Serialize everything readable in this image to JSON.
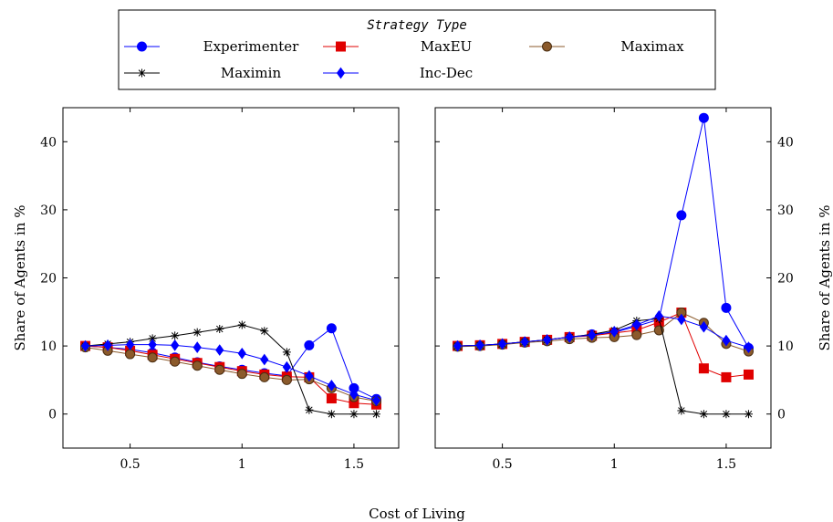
{
  "legend": {
    "title": "Strategy Type",
    "placement": "top-center",
    "columns": 3
  },
  "x_axis_label": "Cost of Living",
  "chart_data": [
    {
      "type": "line",
      "panel": "left",
      "xlabel": "Cost of Living",
      "ylabel": "Share of Agents in %",
      "xlim": [
        0.2,
        1.7
      ],
      "ylim": [
        -5,
        45
      ],
      "x_ticks": [
        0.5,
        1,
        1.5
      ],
      "x_tick_labels": [
        "0.5",
        "1",
        "1.5"
      ],
      "y_ticks": [
        0,
        10,
        20,
        30,
        40
      ],
      "y_tick_labels": [
        "0",
        "10",
        "20",
        "30",
        "40"
      ],
      "grid": false,
      "x": [
        0.3,
        0.4,
        0.5,
        0.6,
        0.7,
        0.8,
        0.9,
        1.0,
        1.1,
        1.2,
        1.3,
        1.4,
        1.5,
        1.6
      ],
      "series": [
        {
          "name": "Experimenter",
          "color": "#0000ff",
          "marker": "circle",
          "values": [
            10.0,
            9.8,
            9.5,
            9.0,
            8.3,
            7.6,
            7.0,
            6.5,
            6.0,
            5.6,
            10.1,
            12.6,
            3.8,
            2.2
          ]
        },
        {
          "name": "MaxEU",
          "color": "#e00000",
          "marker": "square",
          "values": [
            10.0,
            9.8,
            9.3,
            8.7,
            8.1,
            7.5,
            6.9,
            6.3,
            5.8,
            5.5,
            5.4,
            2.3,
            1.6,
            1.4
          ]
        },
        {
          "name": "Maximax",
          "color": "#8b5a2b",
          "marker": "circle",
          "values": [
            9.8,
            9.3,
            8.8,
            8.3,
            7.7,
            7.1,
            6.5,
            5.9,
            5.4,
            5.0,
            5.1,
            3.8,
            2.5,
            1.9
          ]
        },
        {
          "name": "Maximin",
          "color": "#000000",
          "marker": "star",
          "values": [
            10.0,
            10.3,
            10.6,
            11.1,
            11.5,
            12.0,
            12.5,
            13.1,
            12.2,
            9.1,
            0.6,
            0.0,
            0.0,
            0.0
          ]
        },
        {
          "name": "Inc-Dec",
          "color": "#0000ff",
          "marker": "diamond",
          "values": [
            10.0,
            10.1,
            10.2,
            10.2,
            10.1,
            9.8,
            9.4,
            8.9,
            8.0,
            6.9,
            5.6,
            4.2,
            2.9,
            2.0
          ]
        }
      ]
    },
    {
      "type": "line",
      "panel": "right",
      "xlabel": "Cost of Living",
      "ylabel": "Share of Agents in %",
      "xlim": [
        0.2,
        1.7
      ],
      "ylim": [
        -5,
        45
      ],
      "x_ticks": [
        0.5,
        1,
        1.5
      ],
      "x_tick_labels": [
        "0.5",
        "1",
        "1.5"
      ],
      "y_ticks": [
        0,
        10,
        20,
        30,
        40
      ],
      "y_tick_labels": [
        "0",
        "10",
        "20",
        "30",
        "40"
      ],
      "grid": false,
      "x": [
        0.3,
        0.4,
        0.5,
        0.6,
        0.7,
        0.8,
        0.9,
        1.0,
        1.1,
        1.2,
        1.3,
        1.4,
        1.5,
        1.6
      ],
      "series": [
        {
          "name": "Experimenter",
          "color": "#0000ff",
          "marker": "circle",
          "values": [
            10.0,
            10.1,
            10.3,
            10.6,
            10.9,
            11.3,
            11.7,
            12.0,
            12.9,
            13.9,
            29.2,
            43.5,
            15.6,
            9.7
          ]
        },
        {
          "name": "MaxEU",
          "color": "#e00000",
          "marker": "square",
          "values": [
            10.0,
            10.1,
            10.3,
            10.6,
            10.9,
            11.3,
            11.5,
            11.9,
            12.3,
            13.5,
            14.9,
            6.7,
            5.4,
            5.8
          ]
        },
        {
          "name": "Maximax",
          "color": "#8b5a2b",
          "marker": "circle",
          "values": [
            9.9,
            10.0,
            10.2,
            10.5,
            10.7,
            11.0,
            11.2,
            11.3,
            11.6,
            12.3,
            14.9,
            13.4,
            10.3,
            9.2
          ]
        },
        {
          "name": "Maximin",
          "color": "#000000",
          "marker": "star",
          "values": [
            10.0,
            10.1,
            10.3,
            10.6,
            10.9,
            11.3,
            11.7,
            12.3,
            13.7,
            14.0,
            0.5,
            0.0,
            0.0,
            0.0
          ]
        },
        {
          "name": "Inc-Dec",
          "color": "#0000ff",
          "marker": "diamond",
          "values": [
            10.0,
            10.1,
            10.3,
            10.6,
            10.9,
            11.3,
            11.6,
            12.1,
            13.1,
            14.4,
            13.9,
            12.8,
            10.8,
            9.8
          ]
        }
      ]
    }
  ]
}
